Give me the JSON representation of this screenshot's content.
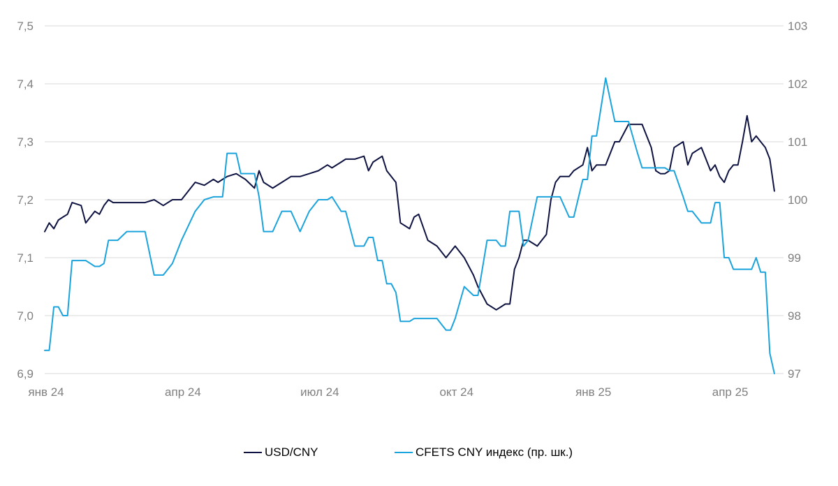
{
  "chart_data": {
    "type": "line",
    "title": "",
    "xlabel": "",
    "ylabel": "",
    "x_tick_labels": [
      "янв 24",
      "апр 24",
      "июл 24",
      "окт 24",
      "янв 25",
      "апр 25"
    ],
    "x_tick_positions": [
      0,
      3,
      6,
      9,
      12,
      15
    ],
    "x_range": [
      0,
      16.2
    ],
    "y_left": {
      "range": [
        6.9,
        7.5
      ],
      "ticks": [
        "6,9",
        "7,0",
        "7,1",
        "7,2",
        "7,3",
        "7,4",
        "7,5"
      ]
    },
    "y_right": {
      "range": [
        97,
        103
      ],
      "ticks": [
        "97",
        "98",
        "99",
        "100",
        "101",
        "102",
        "103"
      ]
    },
    "grid": "horizontal",
    "legend_position": "bottom",
    "series": [
      {
        "name": "USD/CNY",
        "axis": "left",
        "color": "#0d1241",
        "x": [
          0,
          0.1,
          0.2,
          0.3,
          0.4,
          0.5,
          0.6,
          0.8,
          0.9,
          1.1,
          1.2,
          1.3,
          1.4,
          1.5,
          1.6,
          1.8,
          2.0,
          2.2,
          2.4,
          2.6,
          2.8,
          3.0,
          3.3,
          3.5,
          3.7,
          3.8,
          3.9,
          4.0,
          4.2,
          4.3,
          4.4,
          4.6,
          4.7,
          4.8,
          5.0,
          5.2,
          5.4,
          5.6,
          5.8,
          6.0,
          6.2,
          6.3,
          6.5,
          6.6,
          6.8,
          7.0,
          7.1,
          7.2,
          7.3,
          7.4,
          7.5,
          7.6,
          7.7,
          7.8,
          8.0,
          8.1,
          8.2,
          8.4,
          8.6,
          8.8,
          8.9,
          9.0,
          9.2,
          9.4,
          9.5,
          9.7,
          9.9,
          10.0,
          10.1,
          10.2,
          10.3,
          10.4,
          10.5,
          10.6,
          10.8,
          11.0,
          11.1,
          11.2,
          11.3,
          11.5,
          11.6,
          11.8,
          11.9,
          12.0,
          12.1,
          12.3,
          12.5,
          12.6,
          12.8,
          13.0,
          13.1,
          13.3,
          13.4,
          13.5,
          13.6,
          13.7,
          13.8,
          14.0,
          14.1,
          14.2,
          14.4,
          14.6,
          14.7,
          14.8,
          14.9,
          15.0,
          15.1,
          15.2,
          15.3,
          15.4,
          15.5,
          15.6,
          15.7,
          15.8,
          15.9,
          16.0
        ],
        "values": [
          7.145,
          7.16,
          7.15,
          7.165,
          7.17,
          7.175,
          7.195,
          7.19,
          7.16,
          7.18,
          7.175,
          7.19,
          7.2,
          7.195,
          7.195,
          7.195,
          7.195,
          7.195,
          7.2,
          7.19,
          7.2,
          7.2,
          7.23,
          7.225,
          7.235,
          7.23,
          7.235,
          7.24,
          7.245,
          7.24,
          7.235,
          7.22,
          7.25,
          7.23,
          7.22,
          7.23,
          7.24,
          7.24,
          7.245,
          7.25,
          7.26,
          7.255,
          7.265,
          7.27,
          7.27,
          7.275,
          7.25,
          7.265,
          7.27,
          7.275,
          7.25,
          7.24,
          7.23,
          7.16,
          7.15,
          7.17,
          7.175,
          7.13,
          7.12,
          7.1,
          7.11,
          7.12,
          7.1,
          7.07,
          7.05,
          7.02,
          7.01,
          7.015,
          7.02,
          7.02,
          7.08,
          7.1,
          7.13,
          7.13,
          7.12,
          7.14,
          7.2,
          7.23,
          7.24,
          7.24,
          7.25,
          7.26,
          7.29,
          7.25,
          7.26,
          7.26,
          7.3,
          7.3,
          7.33,
          7.33,
          7.33,
          7.29,
          7.25,
          7.245,
          7.245,
          7.25,
          7.29,
          7.3,
          7.26,
          7.28,
          7.29,
          7.25,
          7.26,
          7.24,
          7.23,
          7.25,
          7.26,
          7.26,
          7.3,
          7.345,
          7.3,
          7.31,
          7.3,
          7.29,
          7.27,
          7.215
        ]
      },
      {
        "name": "CFETS CNY индекс (пр. шк.)",
        "axis": "right",
        "color": "#1aa3dc",
        "x": [
          0,
          0.1,
          0.2,
          0.3,
          0.4,
          0.5,
          0.6,
          0.8,
          0.9,
          1.1,
          1.2,
          1.3,
          1.4,
          1.5,
          1.6,
          1.8,
          2.0,
          2.2,
          2.4,
          2.6,
          2.8,
          3.0,
          3.3,
          3.5,
          3.7,
          3.8,
          3.9,
          4.0,
          4.2,
          4.3,
          4.4,
          4.6,
          4.7,
          4.8,
          5.0,
          5.2,
          5.4,
          5.6,
          5.8,
          6.0,
          6.2,
          6.3,
          6.5,
          6.6,
          6.8,
          7.0,
          7.1,
          7.2,
          7.3,
          7.4,
          7.5,
          7.6,
          7.7,
          7.8,
          8.0,
          8.1,
          8.2,
          8.4,
          8.6,
          8.8,
          8.9,
          9.0,
          9.2,
          9.4,
          9.5,
          9.7,
          9.9,
          10.0,
          10.1,
          10.2,
          10.3,
          10.4,
          10.5,
          10.6,
          10.8,
          11.0,
          11.1,
          11.2,
          11.3,
          11.5,
          11.6,
          11.8,
          11.9,
          12.0,
          12.1,
          12.3,
          12.5,
          12.6,
          12.8,
          13.0,
          13.1,
          13.3,
          13.4,
          13.5,
          13.6,
          13.7,
          13.8,
          14.0,
          14.1,
          14.2,
          14.4,
          14.6,
          14.7,
          14.8,
          14.9,
          15.0,
          15.1,
          15.2,
          15.3,
          15.4,
          15.5,
          15.6,
          15.7,
          15.8,
          15.9,
          16.0
        ],
        "values": [
          97.4,
          97.4,
          98.15,
          98.15,
          98.0,
          98.0,
          98.95,
          98.95,
          98.95,
          98.85,
          98.85,
          98.9,
          99.3,
          99.3,
          99.3,
          99.45,
          99.45,
          99.45,
          98.7,
          98.7,
          98.9,
          99.3,
          99.8,
          100.0,
          100.05,
          100.05,
          100.05,
          100.8,
          100.8,
          100.45,
          100.45,
          100.45,
          100.05,
          99.45,
          99.45,
          99.8,
          99.8,
          99.45,
          99.8,
          100.0,
          100.0,
          100.05,
          99.8,
          99.8,
          99.2,
          99.2,
          99.35,
          99.35,
          98.95,
          98.95,
          98.55,
          98.55,
          98.4,
          97.9,
          97.9,
          97.95,
          97.95,
          97.95,
          97.95,
          97.75,
          97.75,
          97.95,
          98.5,
          98.35,
          98.35,
          99.3,
          99.3,
          99.2,
          99.2,
          99.8,
          99.8,
          99.8,
          99.2,
          99.3,
          100.05,
          100.05,
          100.05,
          100.05,
          100.05,
          99.7,
          99.7,
          100.35,
          100.35,
          101.1,
          101.1,
          102.1,
          101.35,
          101.35,
          101.35,
          100.8,
          100.55,
          100.55,
          100.55,
          100.55,
          100.55,
          100.5,
          100.5,
          100.05,
          99.8,
          99.8,
          99.6,
          99.6,
          99.95,
          99.95,
          99.0,
          99.0,
          98.8,
          98.8,
          98.8,
          98.8,
          98.8,
          99.0,
          98.75,
          98.75,
          97.35,
          96.8
        ]
      }
    ]
  }
}
